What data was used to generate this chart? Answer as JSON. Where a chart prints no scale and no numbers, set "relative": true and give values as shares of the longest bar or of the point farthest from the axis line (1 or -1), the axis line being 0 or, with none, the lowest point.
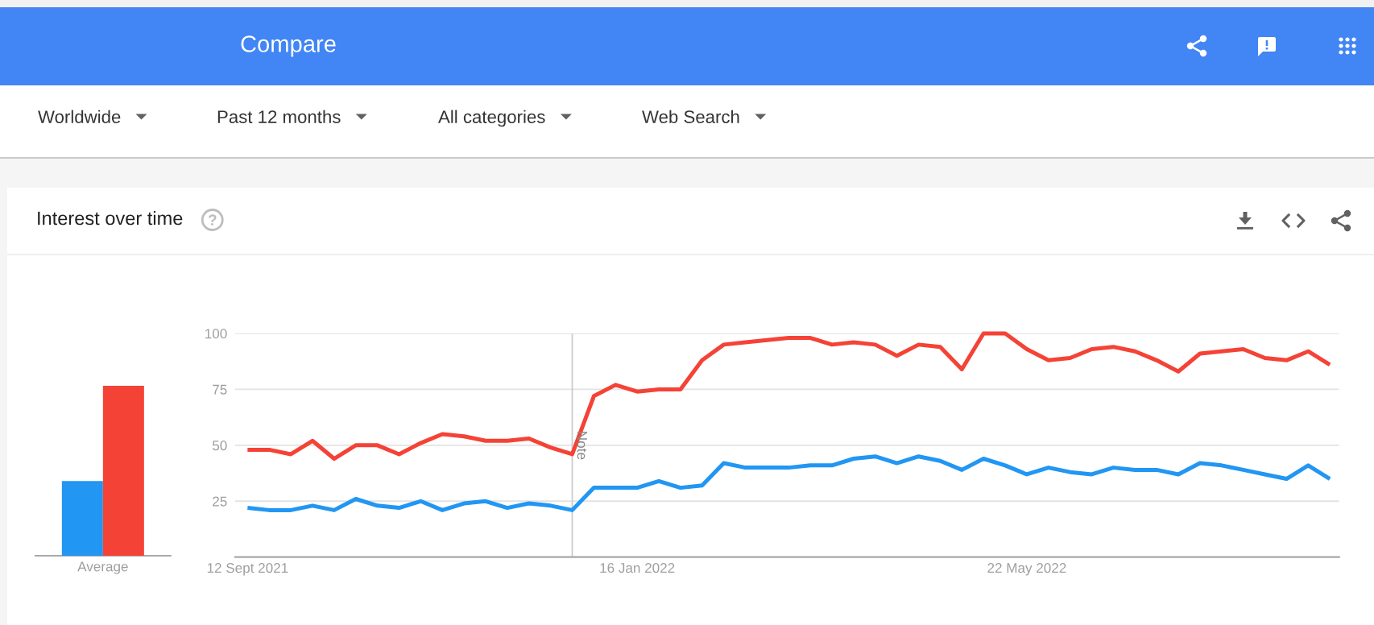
{
  "chart_data": [
    {
      "type": "other",
      "title": "Compare",
      "annotations": [
        "Worldwide",
        "Past 12 months",
        "All categories",
        "Web Search"
      ]
    },
    {
      "type": "bar",
      "categories": [
        "Average"
      ],
      "relative": true,
      "series": [
        {
          "color": "#2196f3",
          "values": [
            0.44
          ]
        },
        {
          "color": "#f44336",
          "values": [
            1
          ]
        }
      ]
    },
    {
      "type": "line",
      "title": "Interest over time",
      "x": [
        "2021-09-12",
        "2021-09-19",
        "2021-09-26",
        "2021-10-03",
        "2021-10-10",
        "2021-10-17",
        "2021-10-24",
        "2021-10-31",
        "2021-11-07",
        "2021-11-14",
        "2021-11-21",
        "2021-11-28",
        "2021-12-05",
        "2021-12-12",
        "2021-12-19",
        "2021-12-26",
        "2022-01-02",
        "2022-01-09",
        "2022-01-16",
        "2022-01-23",
        "2022-01-30",
        "2022-02-06",
        "2022-02-13",
        "2022-02-20",
        "2022-02-27",
        "2022-03-06",
        "2022-03-13",
        "2022-03-20",
        "2022-03-27",
        "2022-04-03",
        "2022-04-10",
        "2022-04-17",
        "2022-04-24",
        "2022-05-01",
        "2022-05-08",
        "2022-05-15",
        "2022-05-22",
        "2022-05-29",
        "2022-06-05",
        "2022-06-12",
        "2022-06-19",
        "2022-06-26",
        "2022-07-03",
        "2022-07-10",
        "2022-07-17",
        "2022-07-24",
        "2022-07-31",
        "2022-08-07",
        "2022-08-14",
        "2022-08-21",
        "2022-08-28"
      ],
      "series": [
        {
          "color": "#f44336",
          "values": [
            48,
            48,
            46,
            52,
            44,
            50,
            50,
            46,
            51,
            55,
            54,
            52,
            52,
            53,
            49,
            46,
            72,
            77,
            74,
            75,
            75,
            88,
            95,
            96,
            97,
            98,
            98,
            95,
            96,
            95,
            90,
            95,
            94,
            84,
            100,
            100,
            93,
            88,
            89,
            93,
            94,
            92,
            88,
            83,
            91,
            92,
            93,
            89,
            88,
            92,
            86
          ]
        },
        {
          "color": "#2196f3",
          "values": [
            22,
            21,
            21,
            23,
            21,
            26,
            23,
            22,
            25,
            21,
            24,
            25,
            22,
            24,
            23,
            21,
            31,
            31,
            31,
            34,
            31,
            32,
            42,
            40,
            40,
            40,
            41,
            41,
            44,
            45,
            42,
            45,
            43,
            39,
            44,
            41,
            37,
            40,
            38,
            37,
            40,
            39,
            39,
            37,
            42,
            41,
            39,
            37,
            35,
            41,
            35
          ]
        }
      ],
      "xlim": [
        "2021-09-08",
        "2022-08-31"
      ],
      "xticks": [
        {
          "value": "2021-09-12",
          "label": "12 Sept 2021"
        },
        {
          "value": "2022-01-16",
          "label": "16 Jan 2022"
        },
        {
          "value": "2022-05-22",
          "label": "22 May 2022"
        }
      ],
      "ylim": [
        0,
        100
      ],
      "yticks": [
        25,
        50,
        75,
        100
      ],
      "grid": "y",
      "ref_lines": [
        {
          "axis": "x",
          "value": "2021-12-26",
          "label": "Note",
          "color": "#cccccc"
        }
      ]
    }
  ]
}
